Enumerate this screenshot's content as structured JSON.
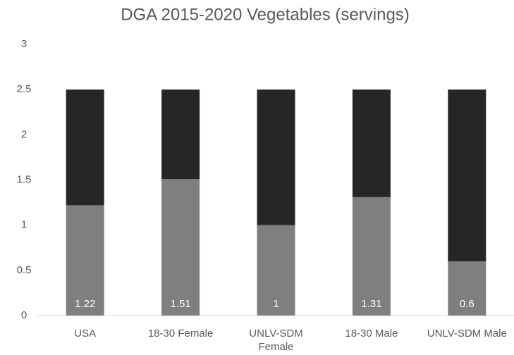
{
  "chart_data": {
    "type": "stacked_bar",
    "title": "DGA 2015-2020 Vegetables (servings)",
    "categories": [
      "USA",
      "18-30 Female",
      "UNLV-SDM Female",
      "18-30 Male",
      "UNLV-SDM Male"
    ],
    "series": [
      {
        "color": "#7f7f7f",
        "values": [
          1.22,
          1.51,
          1,
          1.31,
          0.6
        ],
        "data_labels": true
      },
      {
        "color": "#262626",
        "values": [
          1.28,
          0.99,
          1.5,
          1.19,
          1.9
        ],
        "data_labels": false
      }
    ],
    "ylim": [
      0,
      3
    ],
    "yticks": [
      0,
      0.5,
      1,
      1.5,
      2,
      2.5,
      3
    ],
    "grid": false
  }
}
